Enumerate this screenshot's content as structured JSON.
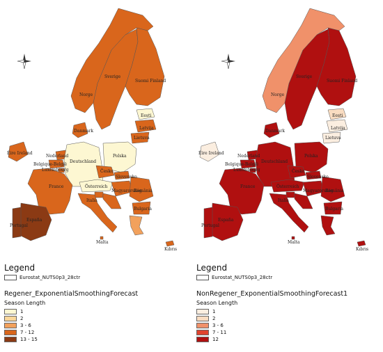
{
  "maps": [
    {
      "id": "regener",
      "colors": {
        "Portugal": "#8b3a14",
        "España": "#8b3a14",
        "France": "#d9661c",
        "Belgique-België": "#d9661c",
        "Nederland": "#d9661c",
        "Luxembourg": "#d9661c",
        "Deutschland": "#fdf7d2",
        "Danmark": "#d9661c",
        "Norge": "#d9661c",
        "Sverige": "#d9661c",
        "Suomi-Finland": "#d9661c",
        "Eesti": "#fdf7d2",
        "Latvija": "#d9661c",
        "Lietuva": "#d9661c",
        "Polska": "#fdf7d2",
        "Česko": "#d9661c",
        "Slovensko": "#d9661c",
        "Österreich": "#fdf7d2",
        "Magyarország": "#d9661c",
        "România": "#d9661c",
        "Bulgaria": "#d9661c",
        "Italia": "#d9661c",
        "Ireland": "#d9661c",
        "Ellada": "#f2a15c",
        "Kıbrıs": "#d9661c",
        "Malta": "#d9661c",
        "Hrvatska": "#d9661c",
        "Slovenija": "#d9661c"
      },
      "legend": {
        "title": "Legend",
        "layer": "Eurostat_NUTS0p3_28ctr",
        "field": "Regener_ExponentialSmoothingForecast",
        "subtitle": "Season Length",
        "classes": [
          {
            "label": "1",
            "color": "#fdf7d2"
          },
          {
            "label": "2",
            "color": "#fbd79a"
          },
          {
            "label": "3 - 6",
            "color": "#f2a15c"
          },
          {
            "label": "7 - 12",
            "color": "#d9661c"
          },
          {
            "label": "13 - 15",
            "color": "#8b3a14"
          }
        ]
      }
    },
    {
      "id": "nonregener",
      "colors": {
        "Portugal": "#b01010",
        "España": "#b01010",
        "France": "#b01010",
        "Belgique-België": "#b01010",
        "Nederland": "#b01010",
        "Luxembourg": "#b01010",
        "Deutschland": "#b01010",
        "Danmark": "#b01010",
        "Norge": "#f0916a",
        "Sverige": "#b01010",
        "Suomi-Finland": "#b01010",
        "Eesti": "#f9dcc1",
        "Latvija": "#fbeee0",
        "Lietuva": "#fbeee0",
        "Polska": "#b01010",
        "Česko": "#b01010",
        "Slovensko": "#b01010",
        "Österreich": "#b01010",
        "Magyarország": "#b01010",
        "România": "#b01010",
        "Bulgaria": "#b01010",
        "Italia": "#b01010",
        "Ireland": "#fbeee0",
        "Ellada": "#b01010",
        "Kıbrıs": "#b01010",
        "Malta": "#b01010",
        "Hrvatska": "#b01010",
        "Slovenija": "#b01010"
      },
      "legend": {
        "title": "Legend",
        "layer": "Eurostat_NUTS0p3_28ctr",
        "field": "NonRegener_ExponentialSmoothingForecast1",
        "subtitle": "Season Length",
        "classes": [
          {
            "label": "1",
            "color": "#fbeee0"
          },
          {
            "label": "2",
            "color": "#f9dcc1"
          },
          {
            "label": "3 - 6",
            "color": "#f0916a"
          },
          {
            "label": "7 - 11",
            "color": "#e0442f"
          },
          {
            "label": "12",
            "color": "#b01010"
          }
        ]
      }
    }
  ]
}
